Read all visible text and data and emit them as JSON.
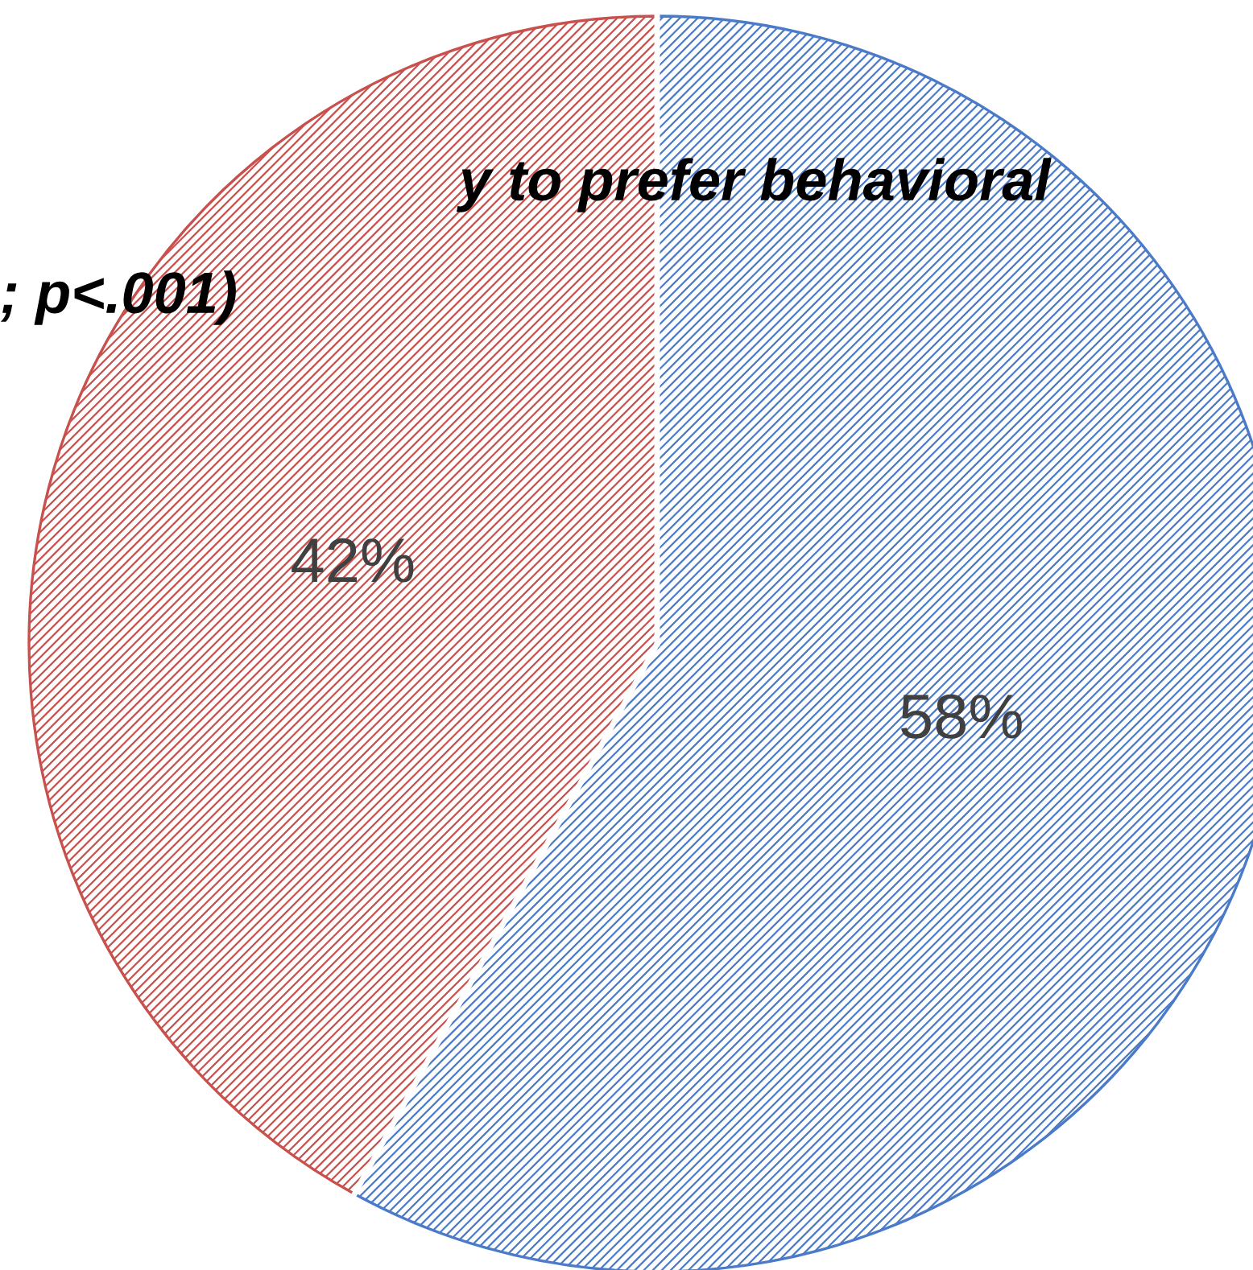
{
  "chart_data": {
    "type": "pie",
    "title": "y to prefer behavioral\n; p<.001)",
    "categories": [
      null,
      null
    ],
    "values": [
      58,
      42
    ],
    "colors": [
      "#4a7ac8",
      "#c8504d"
    ],
    "value_labels": [
      "58%",
      "42%"
    ]
  }
}
